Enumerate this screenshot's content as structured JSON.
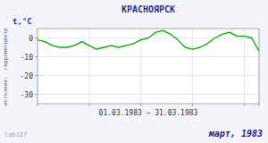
{
  "chart_data": {
    "type": "line",
    "title": "КРАСНОЯРСК",
    "y_label": "t,°C",
    "x_label": "01.03.1983 – 31.03.1983",
    "annotations": [
      "март, 1983",
      "lab127",
      "источник:  гидрометцентр"
    ],
    "x": [
      1,
      2,
      3,
      4,
      5,
      6,
      7,
      8,
      9,
      10,
      11,
      12,
      13,
      14,
      15,
      16,
      17,
      18,
      19,
      20,
      21,
      22,
      23,
      24,
      25,
      26,
      27,
      28,
      29,
      30,
      31
    ],
    "values": [
      -1,
      -2,
      -4,
      -5,
      -5,
      -4,
      -2,
      -4,
      -6,
      -5,
      -4,
      -5,
      -4,
      -3,
      -1,
      0,
      3,
      4,
      2,
      -1,
      -5,
      -6,
      -5,
      -3,
      0,
      2,
      3,
      1,
      1,
      0,
      -7
    ],
    "color": "#00aa00",
    "xlim": [
      1,
      31
    ],
    "xticks": [
      1,
      8,
      15,
      22,
      29,
      31
    ],
    "ylim": [
      -35,
      5
    ],
    "yticks": [
      0,
      -10,
      -20,
      -30
    ],
    "grid": true,
    "tick_labels": "y"
  }
}
